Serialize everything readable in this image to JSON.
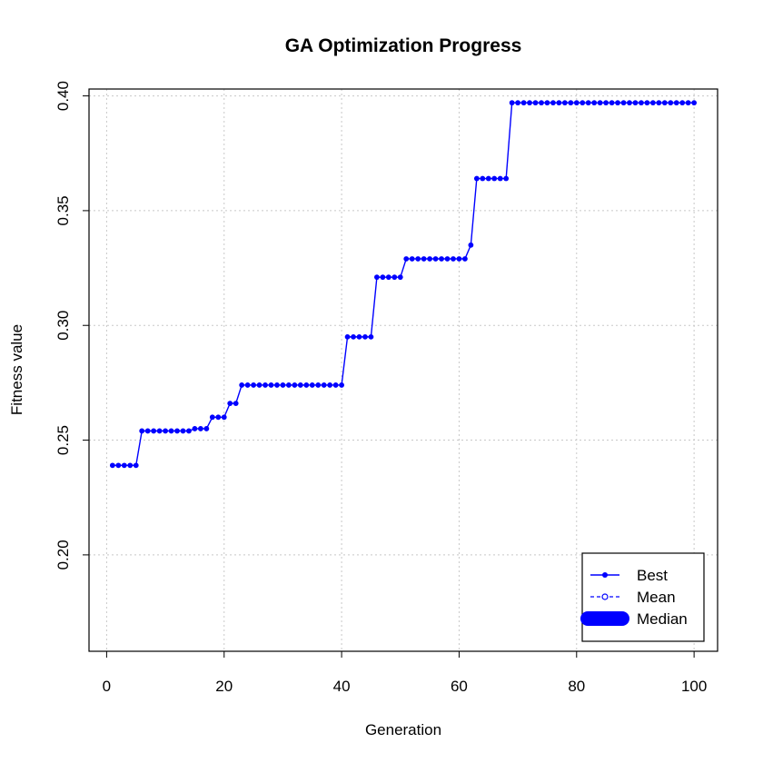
{
  "chart_data": {
    "type": "line",
    "title": "GA Optimization Progress",
    "xlabel": "Generation",
    "ylabel": "Fitness value",
    "xlim": [
      -3,
      104
    ],
    "ylim": [
      0.158,
      0.403
    ],
    "x_ticks": [
      0,
      20,
      40,
      60,
      80,
      100
    ],
    "y_ticks": [
      0.2,
      0.25,
      0.3,
      0.35,
      0.4
    ],
    "x_tick_labels": [
      "0",
      "20",
      "40",
      "60",
      "80",
      "100"
    ],
    "y_tick_labels": [
      "0.20",
      "0.25",
      "0.30",
      "0.35",
      "0.40"
    ],
    "grid": true,
    "legend_position": "bottom-right",
    "series": [
      {
        "name": "Best",
        "color": "#0000ff",
        "style": "line-with-filled-points",
        "x": [
          1,
          2,
          3,
          4,
          5,
          6,
          7,
          8,
          9,
          10,
          11,
          12,
          13,
          14,
          15,
          16,
          17,
          18,
          19,
          20,
          21,
          22,
          23,
          24,
          25,
          26,
          27,
          28,
          29,
          30,
          31,
          32,
          33,
          34,
          35,
          36,
          37,
          38,
          39,
          40,
          41,
          42,
          43,
          44,
          45,
          46,
          47,
          48,
          49,
          50,
          51,
          52,
          53,
          54,
          55,
          56,
          57,
          58,
          59,
          60,
          61,
          62,
          63,
          64,
          65,
          66,
          67,
          68,
          69,
          70,
          71,
          72,
          73,
          74,
          75,
          76,
          77,
          78,
          79,
          80,
          81,
          82,
          83,
          84,
          85,
          86,
          87,
          88,
          89,
          90,
          91,
          92,
          93,
          94,
          95,
          96,
          97,
          98,
          99,
          100
        ],
        "y": [
          0.239,
          0.239,
          0.239,
          0.239,
          0.239,
          0.254,
          0.254,
          0.254,
          0.254,
          0.254,
          0.254,
          0.254,
          0.254,
          0.254,
          0.255,
          0.255,
          0.255,
          0.26,
          0.26,
          0.26,
          0.266,
          0.266,
          0.274,
          0.274,
          0.274,
          0.274,
          0.274,
          0.274,
          0.274,
          0.274,
          0.274,
          0.274,
          0.274,
          0.274,
          0.274,
          0.274,
          0.274,
          0.274,
          0.274,
          0.274,
          0.295,
          0.295,
          0.295,
          0.295,
          0.295,
          0.321,
          0.321,
          0.321,
          0.321,
          0.321,
          0.329,
          0.329,
          0.329,
          0.329,
          0.329,
          0.329,
          0.329,
          0.329,
          0.329,
          0.329,
          0.329,
          0.335,
          0.364,
          0.364,
          0.364,
          0.364,
          0.364,
          0.364,
          0.397,
          0.397,
          0.397,
          0.397,
          0.397,
          0.397,
          0.397,
          0.397,
          0.397,
          0.397,
          0.397,
          0.397,
          0.397,
          0.397,
          0.397,
          0.397,
          0.397,
          0.397,
          0.397,
          0.397,
          0.397,
          0.397,
          0.397,
          0.397,
          0.397,
          0.397,
          0.397,
          0.397,
          0.397,
          0.397,
          0.397,
          0.397
        ]
      }
    ],
    "legend": [
      {
        "label": "Best",
        "style": "line-filled-point",
        "color": "#0000ff"
      },
      {
        "label": "Mean",
        "style": "dashed-open-point",
        "color": "#0000ff"
      },
      {
        "label": "Median",
        "style": "thick-band",
        "color": "#0000ff"
      }
    ]
  }
}
